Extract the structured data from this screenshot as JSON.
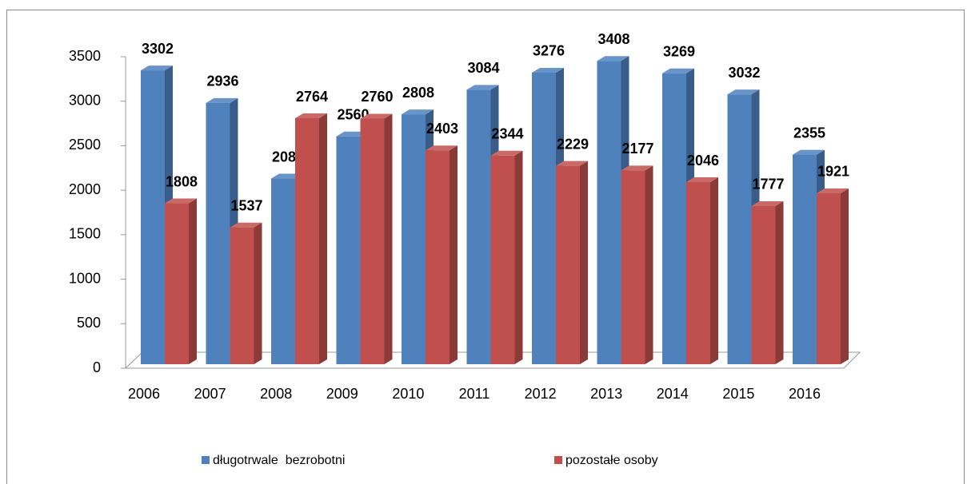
{
  "chart_data": {
    "type": "bar",
    "categories": [
      "2006",
      "2007",
      "2008",
      "2009",
      "2010",
      "2011",
      "2012",
      "2013",
      "2014",
      "2015",
      "2016"
    ],
    "series": [
      {
        "name": "długotrwale  bezrobotni",
        "color": "#4f81bd",
        "values": [
          3302,
          2936,
          2086,
          2560,
          2808,
          3084,
          3276,
          3408,
          3269,
          3032,
          2355
        ]
      },
      {
        "name": "pozostałe osoby",
        "color": "#c0504d",
        "values": [
          1808,
          1537,
          2764,
          2760,
          2403,
          2344,
          2229,
          2177,
          2046,
          1777,
          1921
        ]
      }
    ],
    "ylim": [
      0,
      3500
    ],
    "yticks": [
      0,
      500,
      1000,
      1500,
      2000,
      2500,
      3000,
      3500
    ],
    "legend": "bottom"
  }
}
